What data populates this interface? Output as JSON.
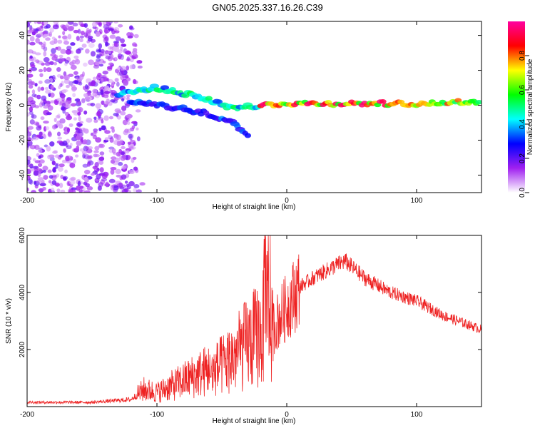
{
  "title": "GN05.2025.337.16.26.C39",
  "chart_data": [
    {
      "type": "heatmap",
      "name": "spectrogram",
      "xlabel": "Height of straight line (km)",
      "ylabel": "Frequency (Hz)",
      "xlim": [
        -200,
        150
      ],
      "ylim": [
        -50,
        48
      ],
      "xticks": [
        -200,
        -100,
        0,
        100
      ],
      "xtick_labels": [
        "-200",
        "-100",
        "0",
        "100"
      ],
      "yticks": [
        -40,
        -20,
        0,
        20,
        40
      ],
      "ytick_labels": [
        "-40",
        "-20",
        "0",
        "20",
        "40"
      ],
      "colorbar": {
        "label": "Normalized spectral amplitude",
        "range": [
          0,
          1
        ],
        "ticks": [
          0.0,
          0.2,
          0.4,
          0.6,
          0.8
        ],
        "tick_labels": [
          "0.0",
          "0.2",
          "0.4",
          "0.6",
          "0.8"
        ],
        "colors": [
          "#ffffff",
          "#a020f0",
          "#0000ff",
          "#00ffff",
          "#00ff00",
          "#ffff00",
          "#ff0000",
          "#ff00a0"
        ]
      },
      "features": [
        {
          "description": "diffuse noise",
          "x_range": [
            -200,
            -115
          ],
          "y_range": [
            -50,
            48
          ],
          "amplitude": 0.15
        },
        {
          "description": "upper branch",
          "points": [
            [
              -130,
              6
            ],
            [
              -100,
              10
            ],
            [
              -80,
              7
            ],
            [
              -60,
              3
            ],
            [
              -40,
              -2
            ],
            [
              -20,
              0
            ]
          ],
          "amplitude": 0.5
        },
        {
          "description": "lower branch",
          "points": [
            [
              -120,
              2
            ],
            [
              -100,
              0
            ],
            [
              -80,
              -2
            ],
            [
              -60,
              -5
            ],
            [
              -40,
              -10
            ],
            [
              -28,
              -18
            ]
          ],
          "amplitude": 0.35
        },
        {
          "description": "straight line",
          "points": [
            [
              -20,
              0
            ],
            [
              0,
              1
            ],
            [
              50,
              1
            ],
            [
              100,
              1
            ],
            [
              150,
              2
            ]
          ],
          "amplitude": 0.9
        }
      ]
    },
    {
      "type": "line",
      "name": "snr",
      "xlabel": "Height of straight line (km)",
      "ylabel": "SNR (10 * v/v)",
      "xlim": [
        -200,
        150
      ],
      "ylim": [
        0,
        6000
      ],
      "xticks": [
        -200,
        -100,
        0,
        100
      ],
      "xtick_labels": [
        "-200",
        "-100",
        "0",
        "100"
      ],
      "yticks": [
        2000,
        4000,
        6000
      ],
      "ytick_labels": [
        "2000",
        "4000",
        "6000"
      ],
      "color": "#ee2222",
      "series": [
        {
          "name": "SNR",
          "x": [
            -200,
            -150,
            -120,
            -110,
            -100,
            -80,
            -60,
            -40,
            -30,
            -20,
            -15,
            -10,
            0,
            10,
            20,
            40,
            45,
            60,
            80,
            100,
            120,
            150
          ],
          "y": [
            150,
            150,
            250,
            600,
            500,
            900,
            1300,
            2100,
            2600,
            3000,
            3900,
            2800,
            3500,
            4200,
            4500,
            5000,
            5100,
            4500,
            4000,
            3700,
            3200,
            2700
          ]
        }
      ]
    }
  ]
}
